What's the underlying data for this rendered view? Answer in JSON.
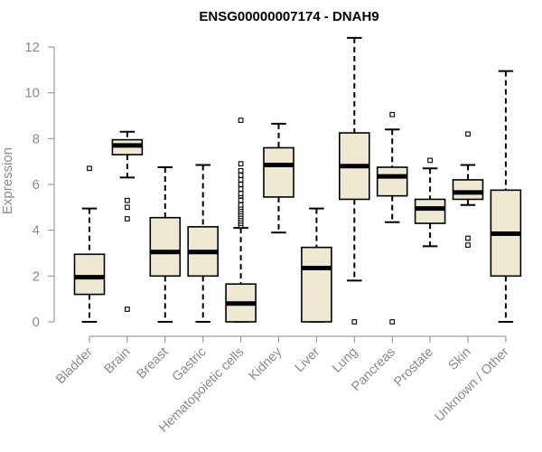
{
  "chart_data": {
    "type": "boxplot",
    "title": "ENSG00000007174 - DNAH9",
    "xlabel": "",
    "ylabel": "Expression",
    "ylim": [
      0,
      12
    ],
    "yticks": [
      0,
      2,
      4,
      6,
      8,
      10,
      12
    ],
    "grid": false,
    "box_fill": "#efe8d2",
    "stroke_color": "#000000",
    "axis_color": "#8a8a8a",
    "categories": [
      "Bladder",
      "Brain",
      "Breast",
      "Gastric",
      "Hematopoietic cells",
      "Kidney",
      "Liver",
      "Lung",
      "Pancreas",
      "Prostate",
      "Skin",
      "Unknown / Other"
    ],
    "boxes": [
      {
        "category": "Bladder",
        "whisker_low": 0.0,
        "q1": 1.2,
        "median": 1.95,
        "q3": 2.95,
        "whisker_high": 4.95,
        "outliers": [
          6.7
        ]
      },
      {
        "category": "Brain",
        "whisker_low": 6.3,
        "q1": 7.3,
        "median": 7.7,
        "q3": 7.95,
        "whisker_high": 8.3,
        "outliers": [
          0.55,
          4.5,
          5.0,
          5.3
        ]
      },
      {
        "category": "Breast",
        "whisker_low": 0.0,
        "q1": 2.0,
        "median": 3.05,
        "q3": 4.55,
        "whisker_high": 6.75,
        "outliers": []
      },
      {
        "category": "Gastric",
        "whisker_low": 0.0,
        "q1": 2.0,
        "median": 3.05,
        "q3": 4.15,
        "whisker_high": 6.85,
        "outliers": []
      },
      {
        "category": "Hematopoietic cells",
        "whisker_low": 0.0,
        "q1": 0.0,
        "median": 0.8,
        "q3": 1.65,
        "whisker_high": 4.1,
        "outliers": [
          4.2,
          4.3,
          4.4,
          4.5,
          4.6,
          4.7,
          4.8,
          4.9,
          5.0,
          5.1,
          5.3,
          5.5,
          5.6,
          5.8,
          6.0,
          6.2,
          6.4,
          6.6,
          6.9,
          8.8
        ]
      },
      {
        "category": "Kidney",
        "whisker_low": 3.9,
        "q1": 5.45,
        "median": 6.85,
        "q3": 7.6,
        "whisker_high": 8.65,
        "outliers": []
      },
      {
        "category": "Liver",
        "whisker_low": 0.0,
        "q1": 0.0,
        "median": 2.35,
        "q3": 3.25,
        "whisker_high": 4.95,
        "outliers": []
      },
      {
        "category": "Lung",
        "whisker_low": 1.8,
        "q1": 5.35,
        "median": 6.8,
        "q3": 8.25,
        "whisker_high": 12.4,
        "outliers": [
          0.0
        ]
      },
      {
        "category": "Pancreas",
        "whisker_low": 4.35,
        "q1": 5.5,
        "median": 6.35,
        "q3": 6.75,
        "whisker_high": 8.4,
        "outliers": [
          0.0,
          9.05
        ]
      },
      {
        "category": "Prostate",
        "whisker_low": 3.3,
        "q1": 4.3,
        "median": 4.95,
        "q3": 5.35,
        "whisker_high": 6.7,
        "outliers": [
          7.05
        ]
      },
      {
        "category": "Skin",
        "whisker_low": 5.1,
        "q1": 5.35,
        "median": 5.65,
        "q3": 6.2,
        "whisker_high": 6.85,
        "outliers": [
          3.35,
          3.65,
          8.2
        ]
      },
      {
        "category": "Unknown / Other",
        "whisker_low": 0.0,
        "q1": 2.0,
        "median": 3.85,
        "q3": 5.75,
        "whisker_high": 10.95,
        "outliers": []
      }
    ]
  }
}
